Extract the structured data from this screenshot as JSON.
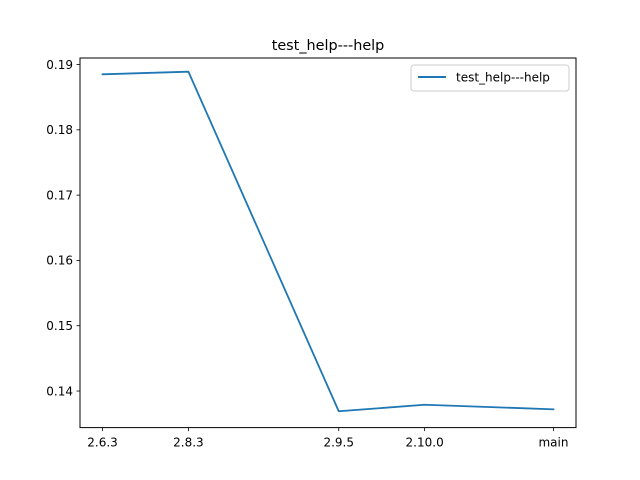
{
  "chart_data": {
    "type": "line",
    "title": "test_help---help",
    "xlabel": "",
    "ylabel": "",
    "categories": [
      "2.6.3",
      "2.8.3",
      "2.9.5",
      "2.10.0",
      "main"
    ],
    "x_positions": [
      0,
      2,
      5.5,
      7.5,
      10.5
    ],
    "xlim": [
      -0.525,
      11.025
    ],
    "ylim": [
      0.1344,
      0.191
    ],
    "yticks": [
      0.14,
      0.15,
      0.16,
      0.17,
      0.18,
      0.19
    ],
    "ytick_labels": [
      "0.14",
      "0.15",
      "0.16",
      "0.17",
      "0.18",
      "0.19"
    ],
    "series": [
      {
        "name": "test_help---help",
        "color": "#1f77b4",
        "values": [
          0.1885,
          0.1889,
          0.1369,
          0.1379,
          0.1372
        ]
      }
    ],
    "grid": false,
    "legend_position": "upper right"
  }
}
